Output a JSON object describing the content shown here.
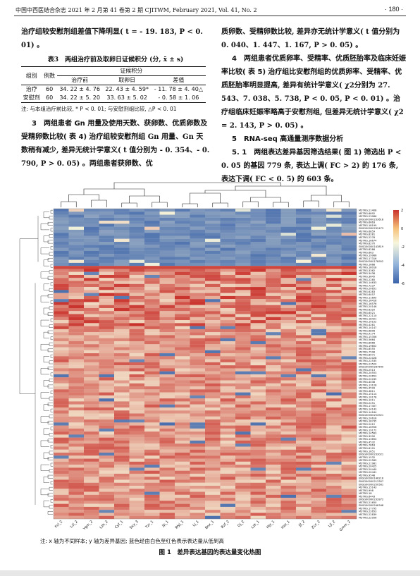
{
  "header": {
    "left": "中国中西医结合杂志 2021 年 2 月第 41 卷第 2 期 CJITWM, February 2021, Vol. 41, No. 2",
    "page": "· 180 ·"
  },
  "left_col": {
    "p1": "治疗组较安慰剂组差值下降明显( t = - 19. 183, P < 0. 01) 。",
    "table_title": "表3　两组治疗前及取卵日证候积分 (分, x̄ ± s)",
    "table": {
      "h_group": "组别",
      "h_n": "例数",
      "h_score": "证候积分",
      "h_before": "治疗前",
      "h_day": "取卵日",
      "h_diff": "差值",
      "rows": [
        {
          "group": "治疗",
          "n": "60",
          "before": "34. 22 ± 4. 76",
          "day": "22. 43 ± 4. 59*",
          "diff": "- 11. 78 ± 4. 40△"
        },
        {
          "group": "安慰剂",
          "n": "60",
          "before": "34. 22 ± 5. 20",
          "day": "33. 63 ± 5. 02",
          "diff": "- 0. 58 ± 1. 06"
        }
      ]
    },
    "table_note": "注: 与本组治疗前比较, * P < 0. 01; 与安慰剂组比较, △P < 0. 01",
    "sec3_title": "3　两组患者 Gn 用量及使用天数、获卵数、优质卵数及受精卵数比较( 表 4)",
    "sec3_body": "治疗组较安慰剂组 Gn 用量、Gn 天数稍有减少, 差异无统计学意义( t 值分别为 - 0. 354、- 0. 790, P > 0. 05) 。两组患者获卵数、优"
  },
  "right_col": {
    "p1": "质卵数、受精卵数比较, 差异亦无统计学意义( t 值分别为 0. 040、1. 447、1. 167, P > 0. 05) 。",
    "sec4_title": "4　两组患者优质卵率、受精率、优质胚胎率及临床妊娠率比较( 表 5)",
    "sec4_body": "治疗组比安慰剂组的优质卵率、受精率、优质胚胎率明显提高, 差异有统计学意义( χ2分别为 27. 543、7. 038、5. 738, P < 0. 05, P < 0. 01) 。治疗组临床妊娠率略高于安慰剂组, 但差异无统计学意义( χ2 = 2. 143, P > 0. 05) 。",
    "sec5_title": "5　RNA-seq 高通量测序数据分析",
    "sec51_title": "5. 1　两组表达差异基因筛选结果( 图 1)",
    "sec51_body": "筛选出 P < 0. 05 的基因 779 条, 表达上调( FC > 2) 的 176 条, 表达下调( FC < 0. 5) 的 603 条。"
  },
  "figure": {
    "note": "注: x 轴为不同样本; y 轴为差异基因; 蓝色经由白色至红色表示表达量从低到高",
    "caption": "图 1　差异表达基因的表达量变化热图"
  },
  "chart_data": {
    "type": "heatmap",
    "x": [
      "Fcl_2",
      "Lzl_2",
      "Ygm_2",
      "Lzh_2",
      "Cyf_1",
      "Sxy_3",
      "Tzr_1",
      "Jp_1",
      "Wyj_1",
      "Lj_1",
      "Bnx_1",
      "Rzf_2",
      "Gj_2",
      "Lzk_1",
      "Hjy_1",
      "Hzz_1",
      "Jjl_2",
      "Zcc_2",
      "Ljl_2",
      "Gmm_2"
    ],
    "y_labels": [
      "MSTRG.21408",
      "MSTRG.6892",
      "MSTRG.23086",
      "ENSG00000233618",
      "MSTRG.6663",
      "MSTRG.18199",
      "ENSG00000232473",
      "MSTRG.6859",
      "MSTRG.8281",
      "MSTRG.2278",
      "MSTRG.16674",
      "MSTRG.8270",
      "ENSG00000143819",
      "MSTRG.8286",
      "MSTRG.663",
      "MSTRG.19966",
      "MSTRG.17316",
      "ENSG00000178952",
      "MSTRG.1668",
      "MSTRG.18018",
      "MSTRG.3362",
      "MSTRG.3438",
      "MSTRG.3645",
      "MSTRG.2285",
      "MSTRG.14633",
      "MSTRG.7237",
      "MSTRG.20651",
      "MSTRG.6283",
      "MSTRG.6057",
      "MSTRG.11695",
      "MSTRG.16418",
      "MSTRG.16576",
      "MSTRG.20146",
      "MSTRG.6320",
      "MSTRG.6521",
      "MSTRG.22110",
      "MSTRG.18421",
      "MSTRG.10152",
      "MSTRG.4261",
      "MSTRG.14147",
      "MSTRG.6806",
      "MSTRG.9174",
      "MSTRG.15356",
      "MSTRG.5664",
      "MSTRG.8666",
      "MSTRG.19652",
      "MSTRG.8555",
      "MSTRG.7508",
      "MSTRG.8071",
      "MSTRG.22028",
      "MSTRG.22535",
      "MSTRG.23520",
      "ENSG00000287640",
      "MSTRG.2513",
      "MSTRG.20553",
      "MSTRG.20653",
      "MSTRG.22035",
      "MSTRG.4038",
      "MSTRG.13126",
      "MSTRG.4599",
      "MSTRG.4811",
      "MSTRG.15114",
      "MSTRG.10178",
      "MSTRG.1011",
      "MSTRG.2251",
      "MSTRG.17407",
      "MSTRG.14143",
      "MSTRG.14164",
      "ENSG00000254921",
      "MSTRG.20616",
      "MSTRG.18735",
      "MSTRG.2012",
      "MSTRG.16956",
      "MSTRG.19172",
      "MSTRG.14563",
      "MSTRG.3990",
      "MSTRG.13654",
      "MSTRG.4532",
      "MSTRG.7863",
      "MSTRG.6101",
      "MSTRG.1651",
      "ENSG00000233021",
      "MSTRG.1532",
      "MSTRG.22569",
      "MSTRG.21981",
      "MSTRG.20425",
      "MSTRG.20440",
      "MSTRG.20441",
      "MSTRG.9548",
      "ENSG00000146216",
      "ENSG00000213307",
      "ENSG00000250581",
      "MSTRG.15143",
      "MSTRG.998",
      "MSTRG.18",
      "MSTRG.6443",
      "ENSG00000232872",
      "MSTRG.21650",
      "ENSG00000248348",
      "MSTRG.17795",
      "MSTRG.22653",
      "MSTRG.22839",
      "MSTRG.22956"
    ],
    "color_scale": {
      "min": -6,
      "max": 2,
      "ticks": [
        2,
        0,
        -2,
        -4,
        -6
      ],
      "low_color": "#3a62a9",
      "mid_color": "#f7f6dc",
      "high_color": "#c9322c"
    },
    "n_genes": 103,
    "n_samples": 20,
    "down_block_rows": 20
  }
}
